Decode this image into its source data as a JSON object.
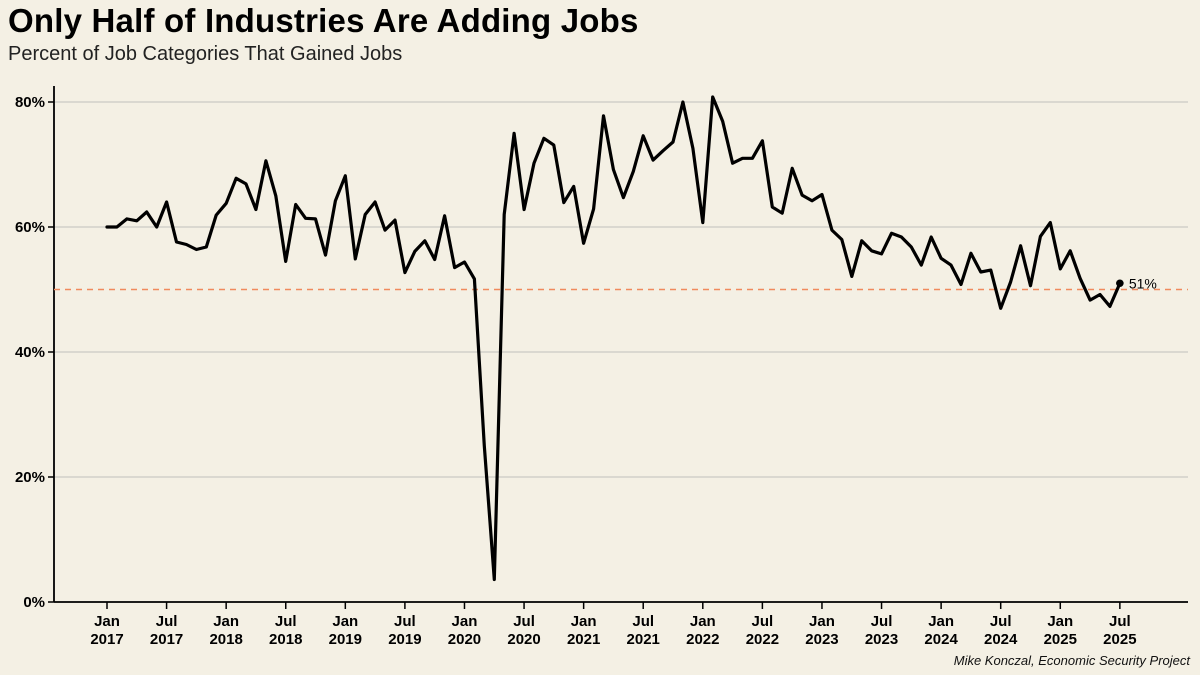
{
  "colors": {
    "background": "#f4f0e4",
    "line": "#000000",
    "grid": "#c9c9c4",
    "reference": "#f08a5d"
  },
  "credit": "Mike Konczal, Economic Security Project",
  "chart_data": {
    "type": "line",
    "title": "Only Half of Industries Are Adding Jobs",
    "subtitle": "Percent of Job Categories That Gained Jobs",
    "xlabel": "",
    "ylabel": "",
    "ylim": [
      0,
      80
    ],
    "yticks": [
      {
        "value": 0,
        "label": "0%"
      },
      {
        "value": 20,
        "label": "20%"
      },
      {
        "value": 40,
        "label": "40%"
      },
      {
        "value": 60,
        "label": "60%"
      },
      {
        "value": 80,
        "label": "80%"
      }
    ],
    "xticks": [
      {
        "date": "2017-01",
        "month": "Jan",
        "year": "2017"
      },
      {
        "date": "2017-07",
        "month": "Jul",
        "year": "2017"
      },
      {
        "date": "2018-01",
        "month": "Jan",
        "year": "2018"
      },
      {
        "date": "2018-07",
        "month": "Jul",
        "year": "2018"
      },
      {
        "date": "2019-01",
        "month": "Jan",
        "year": "2019"
      },
      {
        "date": "2019-07",
        "month": "Jul",
        "year": "2019"
      },
      {
        "date": "2020-01",
        "month": "Jan",
        "year": "2020"
      },
      {
        "date": "2020-07",
        "month": "Jul",
        "year": "2020"
      },
      {
        "date": "2021-01",
        "month": "Jan",
        "year": "2021"
      },
      {
        "date": "2021-07",
        "month": "Jul",
        "year": "2021"
      },
      {
        "date": "2022-01",
        "month": "Jan",
        "year": "2022"
      },
      {
        "date": "2022-07",
        "month": "Jul",
        "year": "2022"
      },
      {
        "date": "2023-01",
        "month": "Jan",
        "year": "2023"
      },
      {
        "date": "2023-07",
        "month": "Jul",
        "year": "2023"
      },
      {
        "date": "2024-01",
        "month": "Jan",
        "year": "2024"
      },
      {
        "date": "2024-07",
        "month": "Jul",
        "year": "2024"
      },
      {
        "date": "2025-01",
        "month": "Jan",
        "year": "2025"
      },
      {
        "date": "2025-07",
        "month": "Jul",
        "year": "2025"
      }
    ],
    "grid": true,
    "reference_line": {
      "value": 50
    },
    "end_label": "51%",
    "series": [
      {
        "name": "",
        "x": [
          "2017-01",
          "2017-02",
          "2017-03",
          "2017-04",
          "2017-05",
          "2017-06",
          "2017-07",
          "2017-08",
          "2017-09",
          "2017-10",
          "2017-11",
          "2017-12",
          "2018-01",
          "2018-02",
          "2018-03",
          "2018-04",
          "2018-05",
          "2018-06",
          "2018-07",
          "2018-08",
          "2018-09",
          "2018-10",
          "2018-11",
          "2018-12",
          "2019-01",
          "2019-02",
          "2019-03",
          "2019-04",
          "2019-05",
          "2019-06",
          "2019-07",
          "2019-08",
          "2019-09",
          "2019-10",
          "2019-11",
          "2019-12",
          "2020-01",
          "2020-02",
          "2020-03",
          "2020-04",
          "2020-05",
          "2020-06",
          "2020-07",
          "2020-08",
          "2020-09",
          "2020-10",
          "2020-11",
          "2020-12",
          "2021-01",
          "2021-02",
          "2021-03",
          "2021-04",
          "2021-05",
          "2021-06",
          "2021-07",
          "2021-08",
          "2021-09",
          "2021-10",
          "2021-11",
          "2021-12",
          "2022-01",
          "2022-02",
          "2022-03",
          "2022-04",
          "2022-05",
          "2022-06",
          "2022-07",
          "2022-08",
          "2022-09",
          "2022-10",
          "2022-11",
          "2022-12",
          "2023-01",
          "2023-02",
          "2023-03",
          "2023-04",
          "2023-05",
          "2023-06",
          "2023-07",
          "2023-08",
          "2023-09",
          "2023-10",
          "2023-11",
          "2023-12",
          "2024-01",
          "2024-02",
          "2024-03",
          "2024-04",
          "2024-05",
          "2024-06",
          "2024-07",
          "2024-08",
          "2024-09",
          "2024-10",
          "2024-11",
          "2024-12",
          "2025-01",
          "2025-02",
          "2025-03",
          "2025-04",
          "2025-05",
          "2025-06",
          "2025-07"
        ],
        "values": [
          60.0,
          60.0,
          61.3,
          61.0,
          62.4,
          60.0,
          64.0,
          57.6,
          57.2,
          56.4,
          56.8,
          61.9,
          63.8,
          67.8,
          66.9,
          62.8,
          70.6,
          65.0,
          54.5,
          63.6,
          61.4,
          61.3,
          55.5,
          64.2,
          68.2,
          54.9,
          62.0,
          64.0,
          59.5,
          61.1,
          52.7,
          56.1,
          57.8,
          54.8,
          61.8,
          53.5,
          54.4,
          51.7,
          25.0,
          3.6,
          62.0,
          75.0,
          62.8,
          70.2,
          74.2,
          73.1,
          63.9,
          66.5,
          57.4,
          62.9,
          77.8,
          69.2,
          64.7,
          68.9,
          74.6,
          70.7,
          72.2,
          73.6,
          80.0,
          72.6,
          60.7,
          80.8,
          76.9,
          70.2,
          71.0,
          71.0,
          73.8,
          63.2,
          62.2,
          69.4,
          65.1,
          64.2,
          65.2,
          59.5,
          58.0,
          52.1,
          57.8,
          56.2,
          55.7,
          59.0,
          58.4,
          56.8,
          53.9,
          58.4,
          55.0,
          53.9,
          50.8,
          55.8,
          52.8,
          53.1,
          47.0,
          51.2,
          57.0,
          50.6,
          58.5,
          60.7,
          53.3,
          56.2,
          51.8,
          48.3,
          49.2,
          47.3,
          51.0
        ]
      }
    ]
  }
}
